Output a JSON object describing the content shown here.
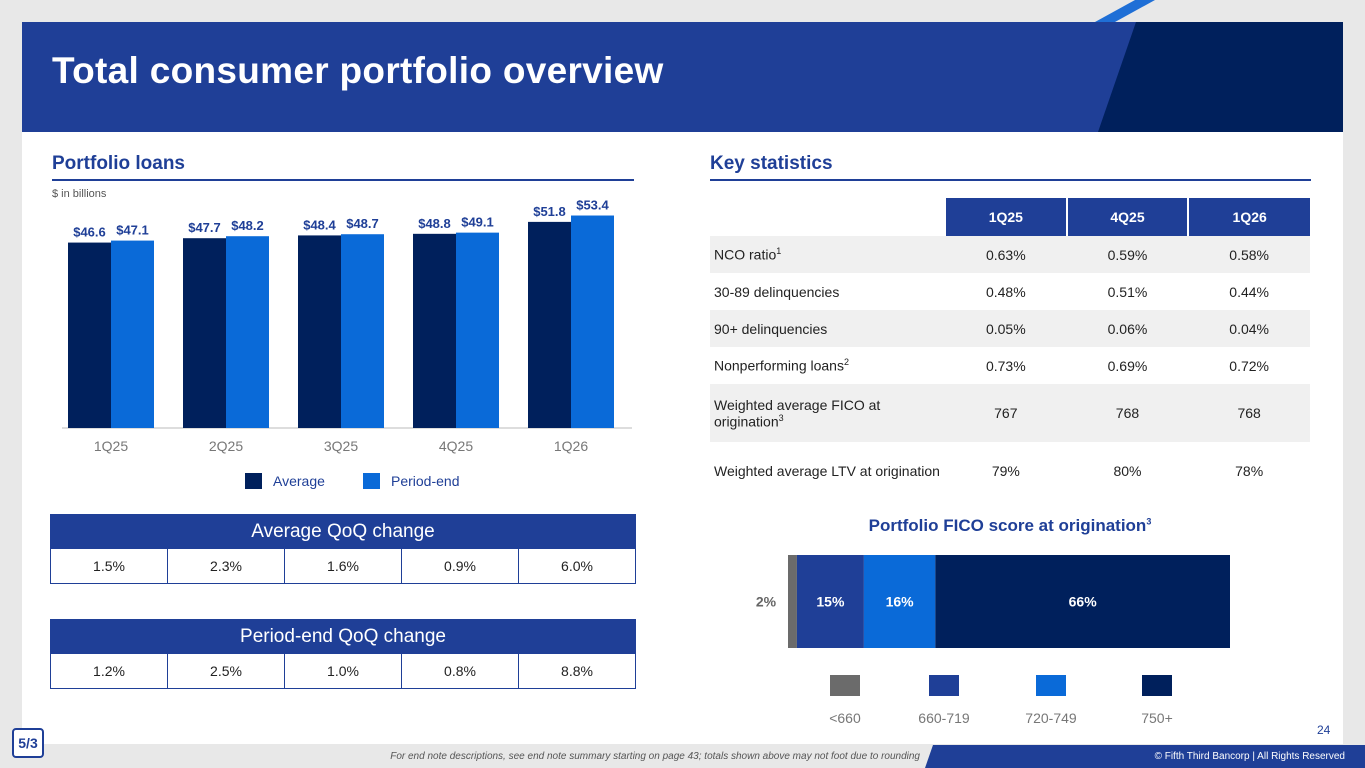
{
  "header": {
    "title": "Total consumer portfolio overview"
  },
  "portfolio": {
    "title": "Portfolio loans",
    "unit_note": "$ in billions",
    "legend": [
      "Average",
      "Period-end"
    ]
  },
  "colors": {
    "average": "#00205c",
    "period_end": "#0a6ad8",
    "brand": "#1f3f97",
    "sub660": "#6b6b6b",
    "c660": "#1f3f97",
    "c720": "#0a6ad8",
    "c750": "#00205c"
  },
  "chart_data": [
    {
      "type": "bar",
      "categories": [
        "1Q25",
        "2Q25",
        "3Q25",
        "4Q25",
        "1Q26"
      ],
      "series": [
        {
          "name": "Average",
          "values": [
            46.6,
            47.7,
            48.4,
            48.8,
            51.8
          ],
          "labels": [
            "$46.6",
            "$47.7",
            "$48.4",
            "$48.8",
            "$51.8"
          ]
        },
        {
          "name": "Period-end",
          "values": [
            47.1,
            48.2,
            48.7,
            49.1,
            53.4
          ],
          "labels": [
            "$47.1",
            "$48.2",
            "$48.7",
            "$49.1",
            "$53.4"
          ]
        }
      ],
      "ylim": [
        0,
        57.3
      ]
    },
    {
      "type": "bar",
      "stacked": true,
      "title": "Portfolio FICO score at origination",
      "title_sup": "3",
      "categories": [
        "<660",
        "660-719",
        "720-749",
        "750+"
      ],
      "values": [
        2,
        15,
        16,
        66
      ],
      "labels": [
        "2%",
        "15%",
        "16%",
        "66%"
      ]
    }
  ],
  "avg_qoq": {
    "title": "Average QoQ change",
    "values": [
      "1.5%",
      "2.3%",
      "1.6%",
      "0.9%",
      "6.0%"
    ]
  },
  "pe_qoq": {
    "title": "Period-end QoQ change",
    "values": [
      "1.2%",
      "2.5%",
      "1.0%",
      "0.8%",
      "8.8%"
    ]
  },
  "stats": {
    "title": "Key statistics",
    "columns": [
      "1Q25",
      "4Q25",
      "1Q26"
    ],
    "rows": [
      {
        "label": "NCO ratio",
        "sup": "1",
        "values": [
          "0.63%",
          "0.59%",
          "0.58%"
        ]
      },
      {
        "label": "30-89 delinquencies",
        "sup": "",
        "values": [
          "0.48%",
          "0.51%",
          "0.44%"
        ]
      },
      {
        "label": "90+ delinquencies",
        "sup": "",
        "values": [
          "0.05%",
          "0.06%",
          "0.04%"
        ]
      },
      {
        "label": "Nonperforming loans",
        "sup": "2",
        "values": [
          "0.73%",
          "0.69%",
          "0.72%"
        ]
      },
      {
        "label": "Weighted average FICO at origination",
        "sup": "3",
        "values": [
          "767",
          "768",
          "768"
        ]
      },
      {
        "label": "Weighted average LTV at origination",
        "sup": "",
        "values": [
          "79%",
          "80%",
          "78%"
        ]
      }
    ]
  },
  "footer": {
    "note": "For end note descriptions, see end note summary starting on page 43; totals shown above may not foot due to rounding",
    "copyright": "© Fifth Third Bancorp | All Rights Reserved",
    "page": "24",
    "logo": "5/3"
  }
}
